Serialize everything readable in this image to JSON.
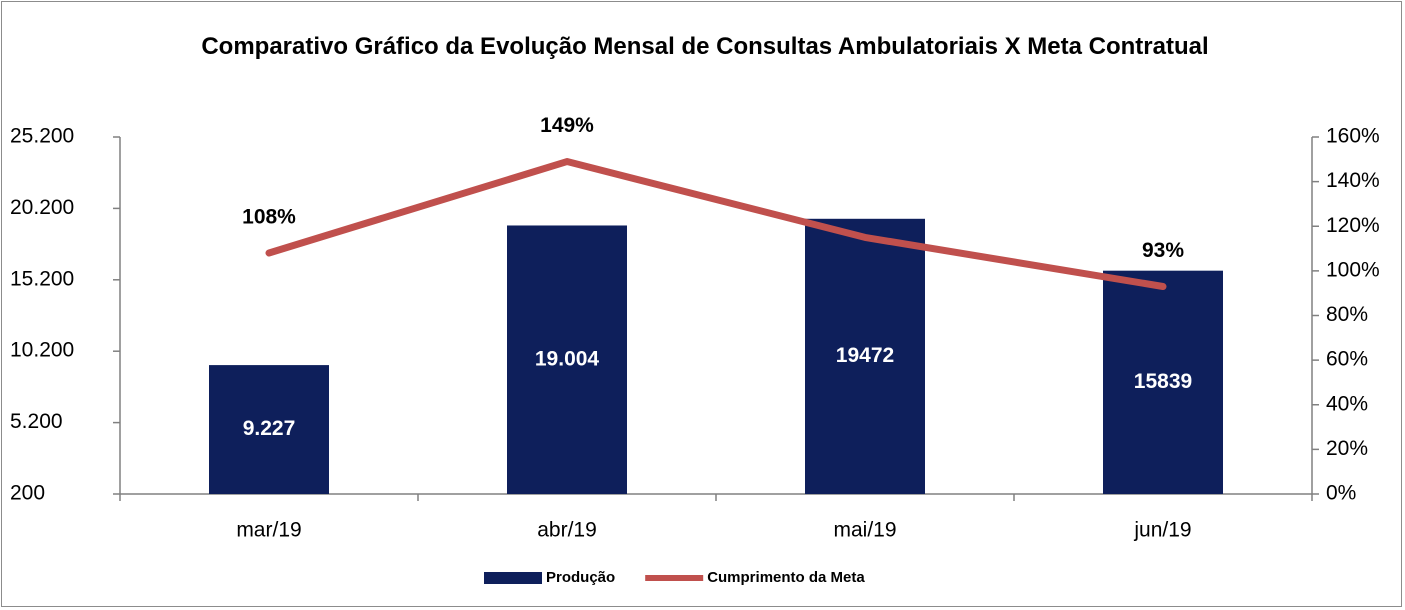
{
  "chart_data": {
    "type": "bar",
    "title": "Comparativo Gráfico da Evolução Mensal de Consultas Ambulatoriais X Meta Contratual",
    "categories": [
      "mar/19",
      "abr/19",
      "mai/19",
      "jun/19"
    ],
    "series": [
      {
        "name": "Produção",
        "type": "bar",
        "color": "#0e1f5b",
        "values": [
          9227,
          19004,
          19472,
          15839
        ],
        "value_labels": [
          "9.227",
          "19.004",
          "19472",
          "15839"
        ]
      },
      {
        "name": "Cumprimento da Meta",
        "type": "line",
        "axis": "y2",
        "color": "#c0504d",
        "values": [
          108,
          149,
          115,
          93
        ],
        "value_labels": [
          "108%",
          "149%",
          null,
          "93%"
        ]
      }
    ],
    "ylim": [
      200,
      25200
    ],
    "yticks": [
      200,
      {
        "value": 5200,
        "label": "5.200"
      },
      {
        "value": 10200,
        "label": "10.200"
      },
      {
        "value": 15200,
        "label": "15.200"
      },
      {
        "value": 20200,
        "label": "20.200"
      },
      {
        "value": 25200,
        "label": "25.200"
      }
    ],
    "y2lim": [
      0,
      160
    ],
    "y2ticks": [
      {
        "value": 0,
        "label": "0%"
      },
      {
        "value": 20,
        "label": "20%"
      },
      {
        "value": 40,
        "label": "40%"
      },
      {
        "value": 60,
        "label": "60%"
      },
      {
        "value": 80,
        "label": "80%"
      },
      {
        "value": 100,
        "label": "100%"
      },
      {
        "value": 120,
        "label": "120%"
      },
      {
        "value": 140,
        "label": "140%"
      },
      {
        "value": 160,
        "label": "160%"
      }
    ],
    "legend": "bottom",
    "grid": false
  }
}
